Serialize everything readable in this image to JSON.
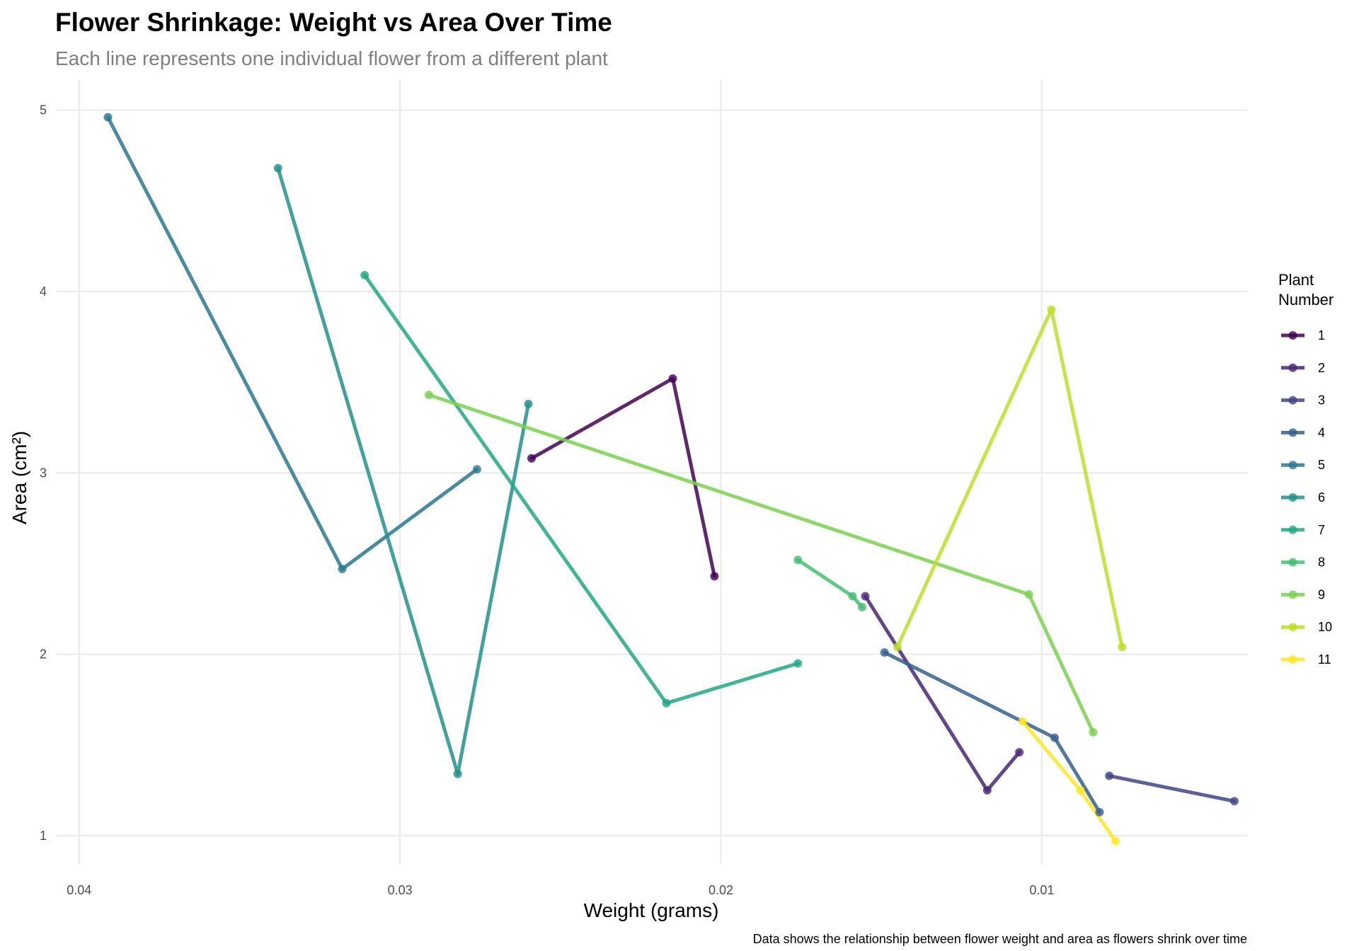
{
  "chart_data": {
    "type": "line",
    "title": "Flower Shrinkage: Weight vs Area Over Time",
    "subtitle": "Each line represents one individual flower from a different plant",
    "xlabel": "Weight (grams)",
    "ylabel": "Area (cm²)",
    "caption": "Data shows the relationship between flower weight and area as flowers shrink over time",
    "x_reversed": true,
    "xlim": [
      0.0407,
      0.0036
    ],
    "ylim": [
      0.84,
      5.17
    ],
    "x_ticks": [
      {
        "value": 0.04,
        "label": "0.04"
      },
      {
        "value": 0.03,
        "label": "0.03"
      },
      {
        "value": 0.02,
        "label": "0.02"
      },
      {
        "value": 0.01,
        "label": "0.01"
      }
    ],
    "y_ticks": [
      {
        "value": 1,
        "label": "1"
      },
      {
        "value": 2,
        "label": "2"
      },
      {
        "value": 3,
        "label": "3"
      },
      {
        "value": 4,
        "label": "4"
      },
      {
        "value": 5,
        "label": "5"
      }
    ],
    "grid": true,
    "legend_position": "right",
    "legend_title": [
      "Plant",
      "Number"
    ],
    "series": [
      {
        "name": "1",
        "color": "#440154",
        "points": [
          [
            0.0259,
            3.08
          ],
          [
            0.0215,
            3.52
          ],
          [
            0.0202,
            2.43
          ]
        ]
      },
      {
        "name": "2",
        "color": "#482576",
        "points": [
          [
            0.0155,
            2.32
          ],
          [
            0.0117,
            1.25
          ],
          [
            0.0107,
            1.46
          ]
        ]
      },
      {
        "name": "3",
        "color": "#414487",
        "points": [
          [
            0.0079,
            1.33
          ],
          [
            0.004,
            1.19
          ]
        ]
      },
      {
        "name": "4",
        "color": "#35608D",
        "points": [
          [
            0.0149,
            2.01
          ],
          [
            0.0096,
            1.54
          ],
          [
            0.0082,
            1.13
          ]
        ]
      },
      {
        "name": "5",
        "color": "#2A788E",
        "points": [
          [
            0.0391,
            4.96
          ],
          [
            0.0318,
            2.47
          ],
          [
            0.0276,
            3.02
          ]
        ]
      },
      {
        "name": "6",
        "color": "#21908C",
        "points": [
          [
            0.0338,
            4.68
          ],
          [
            0.0282,
            1.34
          ],
          [
            0.026,
            3.38
          ]
        ]
      },
      {
        "name": "7",
        "color": "#22A884",
        "points": [
          [
            0.0311,
            4.09
          ],
          [
            0.0217,
            1.73
          ],
          [
            0.0176,
            1.95
          ]
        ]
      },
      {
        "name": "8",
        "color": "#43BF71",
        "points": [
          [
            0.0176,
            2.52
          ],
          [
            0.0159,
            2.32
          ],
          [
            0.0156,
            2.26
          ]
        ]
      },
      {
        "name": "9",
        "color": "#7AD151",
        "points": [
          [
            0.0291,
            3.43
          ],
          [
            0.0104,
            2.33
          ],
          [
            0.0084,
            1.57
          ]
        ]
      },
      {
        "name": "10",
        "color": "#BBDF27",
        "points": [
          [
            0.0145,
            2.04
          ],
          [
            0.0097,
            3.9
          ],
          [
            0.0075,
            2.04
          ]
        ]
      },
      {
        "name": "11",
        "color": "#FDE725",
        "points": [
          [
            0.0106,
            1.63
          ],
          [
            0.0088,
            1.25
          ],
          [
            0.0077,
            0.97
          ]
        ]
      }
    ]
  }
}
